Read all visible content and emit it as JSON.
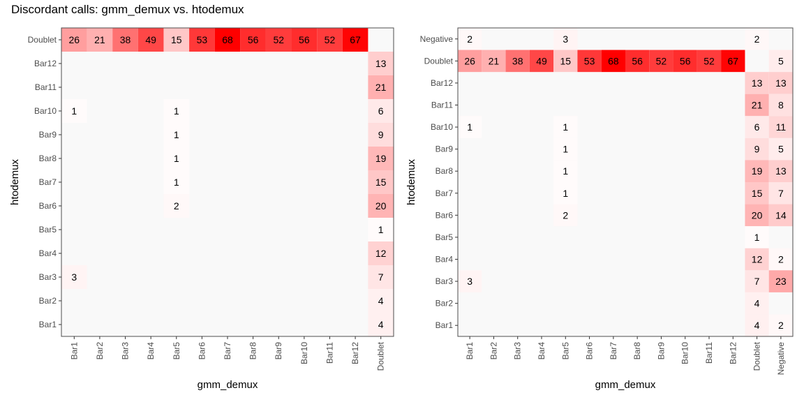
{
  "page_title": "Discordant calls: gmm_demux vs. htodemux",
  "colors": {
    "low": "#FFFFFF",
    "high": "#FF0000",
    "panel": "#F9F9F9",
    "border": "#4D4D4D"
  },
  "chart_data": [
    {
      "type": "heatmap",
      "title": "Discordant calls: gmm_demux vs. htodemux",
      "xlabel": "gmm_demux",
      "ylabel": "htodemux",
      "x_categories": [
        "Bar1",
        "Bar2",
        "Bar3",
        "Bar4",
        "Bar5",
        "Bar6",
        "Bar7",
        "Bar8",
        "Bar9",
        "Bar10",
        "Bar11",
        "Bar12",
        "Doublet"
      ],
      "y_categories": [
        "Bar1",
        "Bar2",
        "Bar3",
        "Bar4",
        "Bar5",
        "Bar6",
        "Bar7",
        "Bar8",
        "Bar9",
        "Bar10",
        "Bar11",
        "Bar12",
        "Doublet"
      ],
      "cells": [
        {
          "x": "Bar1",
          "y": "Doublet",
          "value": 26
        },
        {
          "x": "Bar2",
          "y": "Doublet",
          "value": 21
        },
        {
          "x": "Bar3",
          "y": "Doublet",
          "value": 38
        },
        {
          "x": "Bar4",
          "y": "Doublet",
          "value": 49
        },
        {
          "x": "Bar5",
          "y": "Doublet",
          "value": 15
        },
        {
          "x": "Bar6",
          "y": "Doublet",
          "value": 53
        },
        {
          "x": "Bar7",
          "y": "Doublet",
          "value": 68
        },
        {
          "x": "Bar8",
          "y": "Doublet",
          "value": 56
        },
        {
          "x": "Bar9",
          "y": "Doublet",
          "value": 52
        },
        {
          "x": "Bar10",
          "y": "Doublet",
          "value": 56
        },
        {
          "x": "Bar11",
          "y": "Doublet",
          "value": 52
        },
        {
          "x": "Bar12",
          "y": "Doublet",
          "value": 67
        },
        {
          "x": "Doublet",
          "y": "Bar12",
          "value": 13
        },
        {
          "x": "Doublet",
          "y": "Bar11",
          "value": 21
        },
        {
          "x": "Bar1",
          "y": "Bar10",
          "value": 1
        },
        {
          "x": "Bar5",
          "y": "Bar10",
          "value": 1
        },
        {
          "x": "Doublet",
          "y": "Bar10",
          "value": 6
        },
        {
          "x": "Bar5",
          "y": "Bar9",
          "value": 1
        },
        {
          "x": "Doublet",
          "y": "Bar9",
          "value": 9
        },
        {
          "x": "Bar5",
          "y": "Bar8",
          "value": 1
        },
        {
          "x": "Doublet",
          "y": "Bar8",
          "value": 19
        },
        {
          "x": "Bar5",
          "y": "Bar7",
          "value": 1
        },
        {
          "x": "Doublet",
          "y": "Bar7",
          "value": 15
        },
        {
          "x": "Bar5",
          "y": "Bar6",
          "value": 2
        },
        {
          "x": "Doublet",
          "y": "Bar6",
          "value": 20
        },
        {
          "x": "Doublet",
          "y": "Bar5",
          "value": 1
        },
        {
          "x": "Doublet",
          "y": "Bar4",
          "value": 12
        },
        {
          "x": "Bar1",
          "y": "Bar3",
          "value": 3
        },
        {
          "x": "Doublet",
          "y": "Bar3",
          "value": 7
        },
        {
          "x": "Doublet",
          "y": "Bar2",
          "value": 4
        },
        {
          "x": "Doublet",
          "y": "Bar1",
          "value": 4
        }
      ],
      "color_scale": {
        "low": "#FFFFFF",
        "high": "#FF0000",
        "min": 0,
        "max": 68
      }
    },
    {
      "type": "heatmap",
      "title": "",
      "xlabel": "gmm_demux",
      "ylabel": "htodemux",
      "x_categories": [
        "Bar1",
        "Bar2",
        "Bar3",
        "Bar4",
        "Bar5",
        "Bar6",
        "Bar7",
        "Bar8",
        "Bar9",
        "Bar10",
        "Bar11",
        "Bar12",
        "Doublet",
        "Negative"
      ],
      "y_categories": [
        "Bar1",
        "Bar2",
        "Bar3",
        "Bar4",
        "Bar5",
        "Bar6",
        "Bar7",
        "Bar8",
        "Bar9",
        "Bar10",
        "Bar11",
        "Bar12",
        "Doublet",
        "Negative"
      ],
      "cells": [
        {
          "x": "Bar1",
          "y": "Negative",
          "value": 2
        },
        {
          "x": "Bar5",
          "y": "Negative",
          "value": 3
        },
        {
          "x": "Doublet",
          "y": "Negative",
          "value": 2
        },
        {
          "x": "Bar1",
          "y": "Doublet",
          "value": 26
        },
        {
          "x": "Bar2",
          "y": "Doublet",
          "value": 21
        },
        {
          "x": "Bar3",
          "y": "Doublet",
          "value": 38
        },
        {
          "x": "Bar4",
          "y": "Doublet",
          "value": 49
        },
        {
          "x": "Bar5",
          "y": "Doublet",
          "value": 15
        },
        {
          "x": "Bar6",
          "y": "Doublet",
          "value": 53
        },
        {
          "x": "Bar7",
          "y": "Doublet",
          "value": 68
        },
        {
          "x": "Bar8",
          "y": "Doublet",
          "value": 56
        },
        {
          "x": "Bar9",
          "y": "Doublet",
          "value": 52
        },
        {
          "x": "Bar10",
          "y": "Doublet",
          "value": 56
        },
        {
          "x": "Bar11",
          "y": "Doublet",
          "value": 52
        },
        {
          "x": "Bar12",
          "y": "Doublet",
          "value": 67
        },
        {
          "x": "Negative",
          "y": "Doublet",
          "value": 5
        },
        {
          "x": "Doublet",
          "y": "Bar12",
          "value": 13
        },
        {
          "x": "Negative",
          "y": "Bar12",
          "value": 13
        },
        {
          "x": "Doublet",
          "y": "Bar11",
          "value": 21
        },
        {
          "x": "Negative",
          "y": "Bar11",
          "value": 8
        },
        {
          "x": "Bar1",
          "y": "Bar10",
          "value": 1
        },
        {
          "x": "Bar5",
          "y": "Bar10",
          "value": 1
        },
        {
          "x": "Doublet",
          "y": "Bar10",
          "value": 6
        },
        {
          "x": "Negative",
          "y": "Bar10",
          "value": 11
        },
        {
          "x": "Bar5",
          "y": "Bar9",
          "value": 1
        },
        {
          "x": "Doublet",
          "y": "Bar9",
          "value": 9
        },
        {
          "x": "Negative",
          "y": "Bar9",
          "value": 5
        },
        {
          "x": "Bar5",
          "y": "Bar8",
          "value": 1
        },
        {
          "x": "Doublet",
          "y": "Bar8",
          "value": 19
        },
        {
          "x": "Negative",
          "y": "Bar8",
          "value": 13
        },
        {
          "x": "Bar5",
          "y": "Bar7",
          "value": 1
        },
        {
          "x": "Doublet",
          "y": "Bar7",
          "value": 15
        },
        {
          "x": "Negative",
          "y": "Bar7",
          "value": 7
        },
        {
          "x": "Bar5",
          "y": "Bar6",
          "value": 2
        },
        {
          "x": "Doublet",
          "y": "Bar6",
          "value": 20
        },
        {
          "x": "Negative",
          "y": "Bar6",
          "value": 14
        },
        {
          "x": "Doublet",
          "y": "Bar5",
          "value": 1
        },
        {
          "x": "Doublet",
          "y": "Bar4",
          "value": 12
        },
        {
          "x": "Negative",
          "y": "Bar4",
          "value": 2
        },
        {
          "x": "Bar1",
          "y": "Bar3",
          "value": 3
        },
        {
          "x": "Doublet",
          "y": "Bar3",
          "value": 7
        },
        {
          "x": "Negative",
          "y": "Bar3",
          "value": 23
        },
        {
          "x": "Doublet",
          "y": "Bar2",
          "value": 4
        },
        {
          "x": "Doublet",
          "y": "Bar1",
          "value": 4
        },
        {
          "x": "Negative",
          "y": "Bar1",
          "value": 2
        }
      ],
      "color_scale": {
        "low": "#FFFFFF",
        "high": "#FF0000",
        "min": 0,
        "max": 68
      }
    }
  ]
}
